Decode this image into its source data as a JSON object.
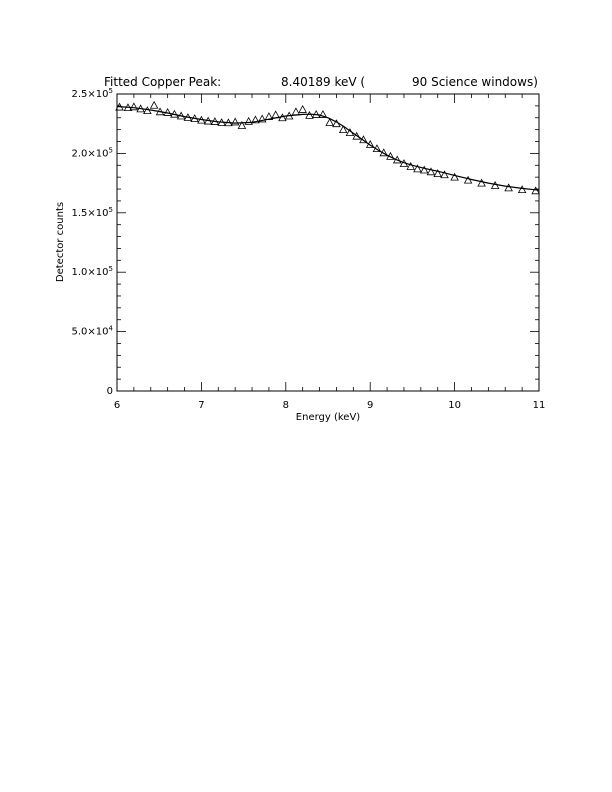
{
  "chart_data": {
    "type": "scatter",
    "title_parts": [
      "Fitted Copper Peak:",
      "8.40189 keV (",
      "90 Science windows)"
    ],
    "xlabel": "Energy (keV)",
    "ylabel": "Detector counts",
    "xlim": [
      6,
      11
    ],
    "ylim": [
      0,
      250000
    ],
    "x_ticks": [
      6,
      7,
      8,
      9,
      10,
      11
    ],
    "x_tick_labels": [
      "6",
      "7",
      "8",
      "9",
      "10",
      "11"
    ],
    "y_ticks": [
      0,
      50000,
      100000,
      150000,
      200000,
      250000
    ],
    "y_tick_labels": [
      {
        "m": "0",
        "e": ""
      },
      {
        "m": "5.0×10",
        "e": "4"
      },
      {
        "m": "1.0×10",
        "e": "5"
      },
      {
        "m": "1.5×10",
        "e": "5"
      },
      {
        "m": "2.0×10",
        "e": "5"
      },
      {
        "m": "2.5×10",
        "e": "5"
      }
    ],
    "grid": false,
    "series": [
      {
        "kind": "points",
        "marker": "triangle",
        "x": [
          6.03,
          6.13,
          6.2,
          6.28,
          6.36,
          6.44,
          6.51,
          6.6,
          6.68,
          6.76,
          6.84,
          6.92,
          7.0,
          7.08,
          7.16,
          7.24,
          7.32,
          7.4,
          7.48,
          7.56,
          7.64,
          7.72,
          7.8,
          7.88,
          7.96,
          8.04,
          8.12,
          8.2,
          8.28,
          8.36,
          8.44,
          8.52,
          8.6,
          8.68,
          8.76,
          8.84,
          8.92,
          9.0,
          9.08,
          9.16,
          9.24,
          9.32,
          9.4,
          9.48,
          9.56,
          9.64,
          9.72,
          9.8,
          9.88,
          10.0,
          10.16,
          10.32,
          10.48,
          10.64,
          10.8,
          10.96
        ],
        "y": [
          239000,
          238500,
          239200,
          237500,
          236000,
          240500,
          235000,
          234500,
          233000,
          231500,
          230200,
          229300,
          228000,
          227200,
          226800,
          226000,
          225800,
          226500,
          223500,
          227000,
          228200,
          229000,
          231000,
          232500,
          230000,
          231500,
          235000,
          237000,
          232000,
          232800,
          232800,
          226000,
          225000,
          220000,
          217500,
          214500,
          211500,
          207500,
          204000,
          200500,
          197500,
          194500,
          191500,
          189000,
          187000,
          186000,
          184500,
          183000,
          182000,
          180000,
          177500,
          175000,
          173000,
          171000,
          169500,
          168500
        ]
      },
      {
        "kind": "line",
        "name": "",
        "x": [
          6.0,
          6.2,
          6.4,
          6.6,
          6.8,
          7.0,
          7.2,
          7.4,
          7.6,
          7.8,
          8.0,
          8.2,
          8.3,
          8.4,
          8.5,
          8.6,
          8.7,
          8.8,
          8.9,
          9.0,
          9.1,
          9.2,
          9.3,
          9.4,
          9.5,
          9.6,
          9.7,
          9.8,
          10.0,
          10.2,
          10.4,
          10.6,
          10.8,
          11.0
        ],
        "y": [
          239500,
          238500,
          236500,
          234000,
          231000,
          228500,
          226500,
          225500,
          226200,
          228800,
          231500,
          232800,
          233000,
          232300,
          230000,
          226500,
          222000,
          217000,
          212000,
          207000,
          202500,
          198500,
          195000,
          192200,
          190000,
          188200,
          186500,
          185000,
          181500,
          178000,
          175000,
          172500,
          170500,
          169000
        ]
      }
    ]
  }
}
